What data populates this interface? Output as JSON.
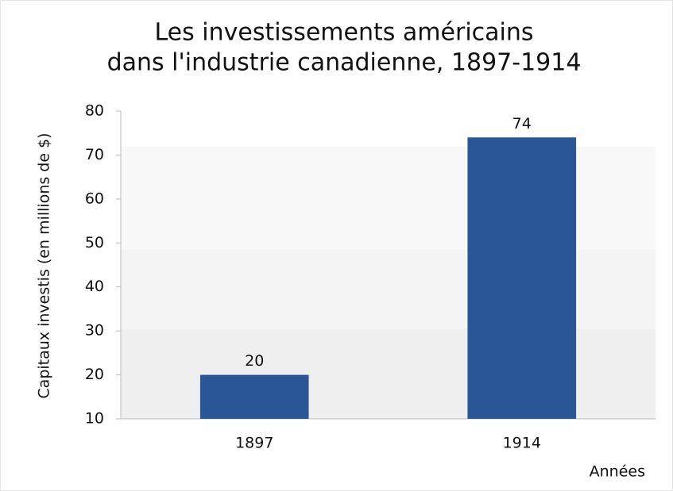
{
  "chart_data": {
    "type": "bar",
    "title": [
      "Les investissements américains",
      "dans l'industrie canadienne, 1897-1914"
    ],
    "y_label": "Capitaux investis (en millions de $)",
    "x_label": "Années",
    "categories": [
      "1897",
      "1914"
    ],
    "values": [
      20,
      74
    ],
    "color": "#285696",
    "ylim": [
      10,
      80
    ],
    "yticks": [
      10,
      20,
      30,
      40,
      50,
      60,
      70,
      80
    ],
    "grid": false
  }
}
